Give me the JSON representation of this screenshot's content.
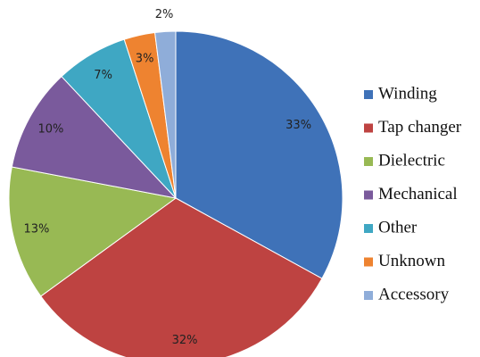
{
  "chart_data": {
    "type": "pie",
    "categories": [
      "Winding",
      "Tap changer",
      "Dielectric",
      "Mechanical",
      "Other",
      "Unknown",
      "Accessory"
    ],
    "values": [
      33,
      32,
      13,
      10,
      7,
      3,
      2
    ],
    "value_labels": [
      "33%",
      "32%",
      "13%",
      "10%",
      "7%",
      "3%",
      "2%"
    ],
    "colors": [
      "#3f72b8",
      "#be4341",
      "#98b954",
      "#7a5a9c",
      "#3fa7c3",
      "#ee8330",
      "#8fadd9"
    ],
    "legend": "right"
  }
}
